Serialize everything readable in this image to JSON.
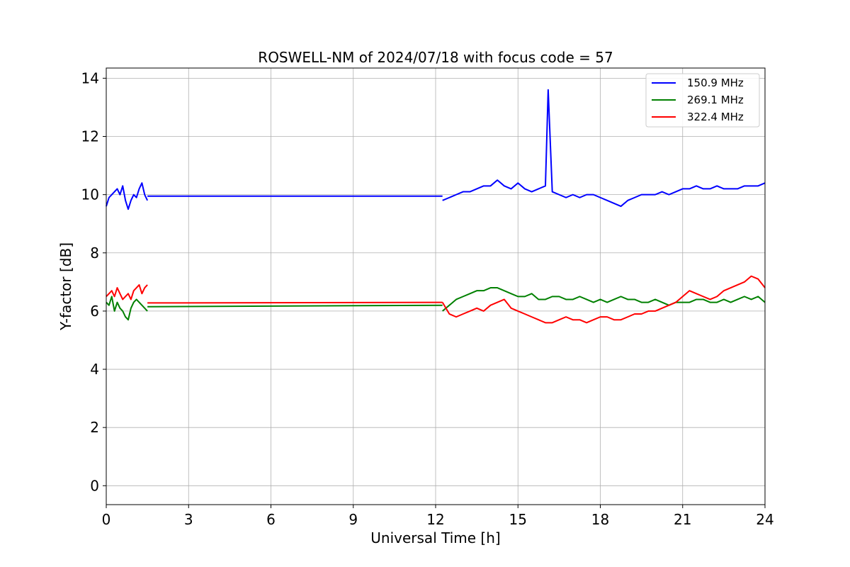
{
  "chart_data": {
    "type": "line",
    "title": "ROSWELL-NM of 2024/07/18 with focus code = 57",
    "xlabel": "Universal Time [h]",
    "ylabel": "Y-factor [dB]",
    "xlim": [
      0,
      24
    ],
    "ylim": [
      -0.65,
      14.35
    ],
    "xticks": [
      0,
      3,
      6,
      9,
      12,
      15,
      18,
      21,
      24
    ],
    "yticks": [
      0,
      2,
      4,
      6,
      8,
      10,
      12,
      14
    ],
    "xtick_labels": [
      "0",
      "3",
      "6",
      "9",
      "12",
      "15",
      "18",
      "21",
      "24"
    ],
    "ytick_labels": [
      "0",
      "2",
      "4",
      "6",
      "8",
      "10",
      "12",
      "14"
    ],
    "grid": true,
    "legend_position": "top-right",
    "series": [
      {
        "name": "150.9 MHz",
        "color": "#0000ff",
        "segments": [
          {
            "x": [
              0.0,
              0.1,
              0.2,
              0.3,
              0.4,
              0.5,
              0.6,
              0.7,
              0.8,
              0.9,
              1.0,
              1.1,
              1.2,
              1.3,
              1.4,
              1.5
            ],
            "y": [
              9.6,
              9.9,
              10.0,
              10.1,
              10.2,
              10.0,
              10.3,
              9.8,
              9.5,
              9.8,
              10.0,
              9.9,
              10.2,
              10.4,
              10.0,
              9.8
            ]
          },
          {
            "x": [
              1.5,
              12.25
            ],
            "y": [
              9.95,
              9.95
            ]
          },
          {
            "x": [
              12.25,
              12.5,
              12.75,
              13.0,
              13.25,
              13.5,
              13.75,
              14.0,
              14.25,
              14.5,
              14.75,
              15.0,
              15.25,
              15.5,
              15.75,
              16.0,
              16.1,
              16.25,
              16.5,
              16.75,
              17.0,
              17.25,
              17.5,
              17.75,
              18.0,
              18.25,
              18.5,
              18.75,
              19.0,
              19.25,
              19.5,
              19.75,
              20.0,
              20.25,
              20.5,
              20.75,
              21.0,
              21.25,
              21.5,
              21.75,
              22.0,
              22.25,
              22.5,
              22.75,
              23.0,
              23.25,
              23.5,
              23.75,
              24.0
            ],
            "y": [
              9.8,
              9.9,
              10.0,
              10.1,
              10.1,
              10.2,
              10.3,
              10.3,
              10.5,
              10.3,
              10.2,
              10.4,
              10.2,
              10.1,
              10.2,
              10.3,
              13.6,
              10.1,
              10.0,
              9.9,
              10.0,
              9.9,
              10.0,
              10.0,
              9.9,
              9.8,
              9.7,
              9.6,
              9.8,
              9.9,
              10.0,
              10.0,
              10.0,
              10.1,
              10.0,
              10.1,
              10.2,
              10.2,
              10.3,
              10.2,
              10.2,
              10.3,
              10.2,
              10.2,
              10.2,
              10.3,
              10.3,
              10.3,
              10.4
            ]
          }
        ]
      },
      {
        "name": "269.1 MHz",
        "color": "#008000",
        "segments": [
          {
            "x": [
              0.0,
              0.1,
              0.2,
              0.3,
              0.4,
              0.5,
              0.6,
              0.7,
              0.8,
              0.9,
              1.0,
              1.1,
              1.2,
              1.3,
              1.4,
              1.5
            ],
            "y": [
              6.3,
              6.2,
              6.5,
              6.0,
              6.3,
              6.1,
              6.0,
              5.8,
              5.7,
              6.1,
              6.3,
              6.4,
              6.3,
              6.2,
              6.1,
              6.0
            ]
          },
          {
            "x": [
              1.5,
              12.25
            ],
            "y": [
              6.15,
              6.2
            ]
          },
          {
            "x": [
              12.25,
              12.5,
              12.75,
              13.0,
              13.25,
              13.5,
              13.75,
              14.0,
              14.25,
              14.5,
              14.75,
              15.0,
              15.25,
              15.5,
              15.75,
              16.0,
              16.25,
              16.5,
              16.75,
              17.0,
              17.25,
              17.5,
              17.75,
              18.0,
              18.25,
              18.5,
              18.75,
              19.0,
              19.25,
              19.5,
              19.75,
              20.0,
              20.25,
              20.5,
              20.75,
              21.0,
              21.25,
              21.5,
              21.75,
              22.0,
              22.25,
              22.5,
              22.75,
              23.0,
              23.25,
              23.5,
              23.75,
              24.0
            ],
            "y": [
              6.0,
              6.2,
              6.4,
              6.5,
              6.6,
              6.7,
              6.7,
              6.8,
              6.8,
              6.7,
              6.6,
              6.5,
              6.5,
              6.6,
              6.4,
              6.4,
              6.5,
              6.5,
              6.4,
              6.4,
              6.5,
              6.4,
              6.3,
              6.4,
              6.3,
              6.4,
              6.5,
              6.4,
              6.4,
              6.3,
              6.3,
              6.4,
              6.3,
              6.2,
              6.3,
              6.3,
              6.3,
              6.4,
              6.4,
              6.3,
              6.3,
              6.4,
              6.3,
              6.4,
              6.5,
              6.4,
              6.5,
              6.3
            ]
          }
        ]
      },
      {
        "name": "322.4 MHz",
        "color": "#ff0000",
        "segments": [
          {
            "x": [
              0.0,
              0.1,
              0.2,
              0.3,
              0.4,
              0.5,
              0.6,
              0.7,
              0.8,
              0.9,
              1.0,
              1.1,
              1.2,
              1.3,
              1.4,
              1.5
            ],
            "y": [
              6.5,
              6.6,
              6.7,
              6.5,
              6.8,
              6.6,
              6.4,
              6.5,
              6.6,
              6.4,
              6.7,
              6.8,
              6.9,
              6.6,
              6.8,
              6.9
            ]
          },
          {
            "x": [
              1.5,
              12.25
            ],
            "y": [
              6.28,
              6.3
            ]
          },
          {
            "x": [
              12.25,
              12.5,
              12.75,
              13.0,
              13.25,
              13.5,
              13.75,
              14.0,
              14.25,
              14.5,
              14.75,
              15.0,
              15.25,
              15.5,
              15.75,
              16.0,
              16.25,
              16.5,
              16.75,
              17.0,
              17.25,
              17.5,
              17.75,
              18.0,
              18.25,
              18.5,
              18.75,
              19.0,
              19.25,
              19.5,
              19.75,
              20.0,
              20.25,
              20.5,
              20.75,
              21.0,
              21.25,
              21.5,
              21.75,
              22.0,
              22.25,
              22.5,
              22.75,
              23.0,
              23.25,
              23.5,
              23.75,
              24.0
            ],
            "y": [
              6.3,
              5.9,
              5.8,
              5.9,
              6.0,
              6.1,
              6.0,
              6.2,
              6.3,
              6.4,
              6.1,
              6.0,
              5.9,
              5.8,
              5.7,
              5.6,
              5.6,
              5.7,
              5.8,
              5.7,
              5.7,
              5.6,
              5.7,
              5.8,
              5.8,
              5.7,
              5.7,
              5.8,
              5.9,
              5.9,
              6.0,
              6.0,
              6.1,
              6.2,
              6.3,
              6.5,
              6.7,
              6.6,
              6.5,
              6.4,
              6.5,
              6.7,
              6.8,
              6.9,
              7.0,
              7.2,
              7.1,
              6.8
            ]
          }
        ]
      }
    ]
  }
}
